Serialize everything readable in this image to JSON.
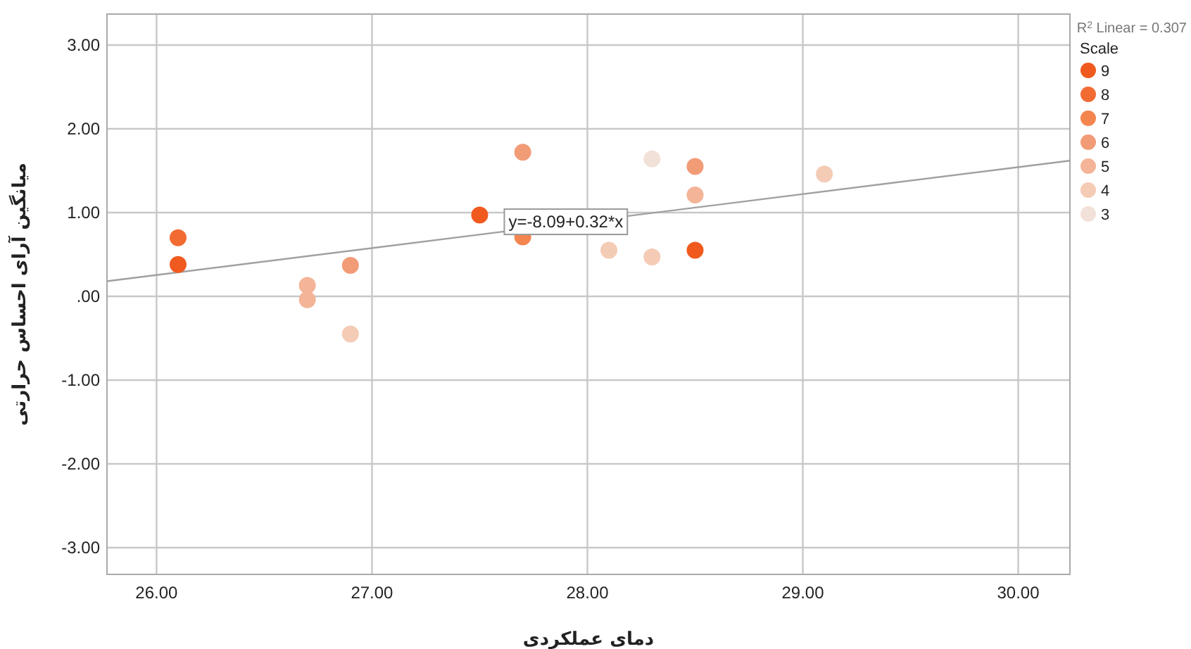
{
  "chart_data": {
    "type": "scatter",
    "xlabel": "دمای عملکردی",
    "ylabel": "میانگین آرای احساس حرارتی",
    "legend_title": "Scale",
    "xlim": [
      25.77,
      30.24
    ],
    "ylim": [
      -3.32,
      3.37
    ],
    "xticks": [
      {
        "value": 26,
        "label": "26.00"
      },
      {
        "value": 27,
        "label": "27.00"
      },
      {
        "value": 28,
        "label": "28.00"
      },
      {
        "value": 29,
        "label": "29.00"
      },
      {
        "value": 30,
        "label": "30.00"
      }
    ],
    "yticks": [
      {
        "value": -3,
        "label": "-3.00"
      },
      {
        "value": -2,
        "label": "-2.00"
      },
      {
        "value": -1,
        "label": "-1.00"
      },
      {
        "value": 0,
        "label": ".00"
      },
      {
        "value": 1,
        "label": "1.00"
      },
      {
        "value": 2,
        "label": "2.00"
      },
      {
        "value": 3,
        "label": "3.00"
      }
    ],
    "grid": true,
    "legend": "top right",
    "marker": "circle",
    "series": [
      {
        "name": "9",
        "color": "#f05a1e",
        "x": [
          26.1,
          27.5,
          28.5
        ],
        "values": [
          0.38,
          0.97,
          0.55
        ]
      },
      {
        "name": "8",
        "color": "#f26b32",
        "x": [
          26.1
        ],
        "values": [
          0.7
        ]
      },
      {
        "name": "7",
        "color": "#f4854f",
        "x": [
          27.7
        ],
        "values": [
          0.71
        ]
      },
      {
        "name": "6",
        "color": "#f29b77",
        "x": [
          26.9,
          27.7,
          28.5
        ],
        "values": [
          0.37,
          1.72,
          1.55
        ]
      },
      {
        "name": "5",
        "color": "#f4b497",
        "x": [
          26.7,
          26.7,
          28.5
        ],
        "values": [
          0.13,
          -0.04,
          1.21
        ]
      },
      {
        "name": "4",
        "color": "#f4cbb5",
        "x": [
          26.9,
          28.1,
          28.3,
          29.1
        ],
        "values": [
          -0.45,
          0.55,
          0.47,
          1.46
        ]
      },
      {
        "name": "3",
        "color": "#f2e1d9",
        "x": [
          28.3
        ],
        "values": [
          1.64
        ]
      },
      {
        "type": "line",
        "marker": "none",
        "color": "#a0a0a0",
        "x": [
          25.77,
          30.24
        ],
        "values": [
          0.18,
          1.62
        ]
      }
    ],
    "annotations": [
      "R$^{2}$ Linear = 0.307",
      {
        "text": "y=-8.09+0.32*x",
        "x": 27.9,
        "y": 0.89
      }
    ]
  }
}
